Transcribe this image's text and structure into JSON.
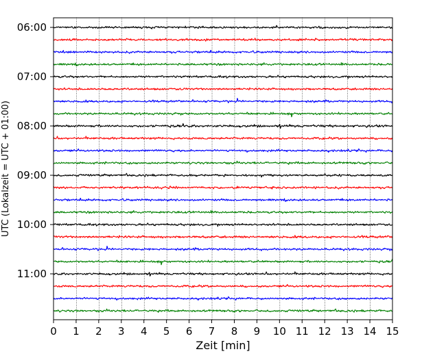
{
  "chart_data": {
    "type": "line",
    "description_kind": "helicorder",
    "xlabel": "Zeit  [min]",
    "ylabel": "UTC (Lokalzeit = UTC + 01:00)",
    "xlim": [
      0,
      15
    ],
    "x_ticks": [
      0,
      1,
      2,
      3,
      4,
      5,
      6,
      7,
      8,
      9,
      10,
      11,
      12,
      13,
      14,
      15
    ],
    "x_grid": true,
    "y_tick_labels": [
      "06:00",
      "07:00",
      "08:00",
      "09:00",
      "10:00",
      "11:00"
    ],
    "y_tick_trace_index": [
      0,
      4,
      8,
      12,
      16,
      20
    ],
    "trace_minutes": 15,
    "trace_start": "06:00",
    "trace_count": 24,
    "trace_colors": [
      "#000000",
      "#ff0000",
      "#0000ff",
      "#008000"
    ],
    "traces": [
      {
        "start": "06:00",
        "color": "#000000",
        "amp": 1.0
      },
      {
        "start": "06:15",
        "color": "#ff0000",
        "amp": 1.0
      },
      {
        "start": "06:30",
        "color": "#0000ff",
        "amp": 1.0
      },
      {
        "start": "06:45",
        "color": "#008000",
        "amp": 1.0
      },
      {
        "start": "07:00",
        "color": "#000000",
        "amp": 1.0
      },
      {
        "start": "07:15",
        "color": "#ff0000",
        "amp": 1.0
      },
      {
        "start": "07:30",
        "color": "#0000ff",
        "amp": 1.0
      },
      {
        "start": "07:45",
        "color": "#008000",
        "amp": 1.0
      },
      {
        "start": "08:00",
        "color": "#000000",
        "amp": 1.1
      },
      {
        "start": "08:15",
        "color": "#ff0000",
        "amp": 1.0
      },
      {
        "start": "08:30",
        "color": "#0000ff",
        "amp": 1.0
      },
      {
        "start": "08:45",
        "color": "#008000",
        "amp": 1.0
      },
      {
        "start": "09:00",
        "color": "#000000",
        "amp": 1.0
      },
      {
        "start": "09:15",
        "color": "#ff0000",
        "amp": 1.0
      },
      {
        "start": "09:30",
        "color": "#0000ff",
        "amp": 1.0
      },
      {
        "start": "09:45",
        "color": "#008000",
        "amp": 1.0
      },
      {
        "start": "10:00",
        "color": "#000000",
        "amp": 1.0
      },
      {
        "start": "10:15",
        "color": "#ff0000",
        "amp": 1.1
      },
      {
        "start": "10:30",
        "color": "#0000ff",
        "amp": 1.0
      },
      {
        "start": "10:45",
        "color": "#008000",
        "amp": 1.0
      },
      {
        "start": "11:00",
        "color": "#000000",
        "amp": 1.0
      },
      {
        "start": "11:15",
        "color": "#ff0000",
        "amp": 1.0
      },
      {
        "start": "11:30",
        "color": "#0000ff",
        "amp": 1.0
      },
      {
        "start": "11:45",
        "color": "#008000",
        "amp": 1.0
      }
    ]
  }
}
